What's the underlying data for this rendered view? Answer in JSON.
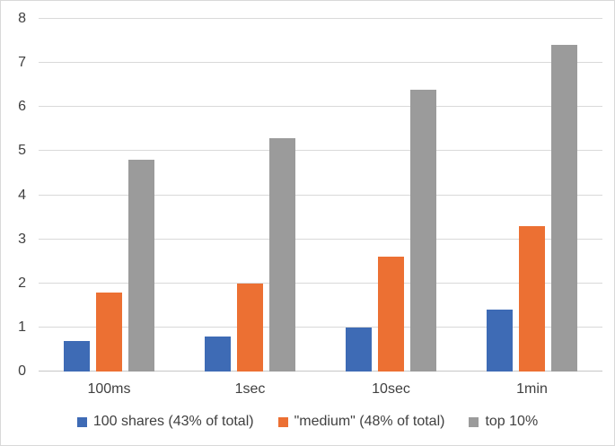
{
  "chart_data": {
    "type": "bar",
    "title": "",
    "xlabel": "",
    "ylabel": "",
    "categories": [
      "100ms",
      "1sec",
      "10sec",
      "1min"
    ],
    "series": [
      {
        "name": "100 shares (43% of total)",
        "color": "#3e6bb5",
        "values": [
          0.7,
          0.8,
          1.0,
          1.4
        ]
      },
      {
        "name": "\"medium\" (48% of total)",
        "color": "#ec7033",
        "values": [
          1.8,
          2.0,
          2.6,
          3.3
        ]
      },
      {
        "name": "top 10%",
        "color": "#9b9b9b",
        "values": [
          4.8,
          5.3,
          6.4,
          7.4
        ]
      }
    ],
    "ylim": [
      0,
      8
    ],
    "yticks": [
      0,
      1,
      2,
      3,
      4,
      5,
      6,
      7,
      8
    ],
    "grid": "horizontal",
    "legend_position": "bottom"
  },
  "colors": {
    "gridline": "#d9d9d9",
    "axis_line": "#c6c6c6",
    "axis_text": "#404040",
    "border": "#d9d9d9",
    "background": "#ffffff"
  }
}
